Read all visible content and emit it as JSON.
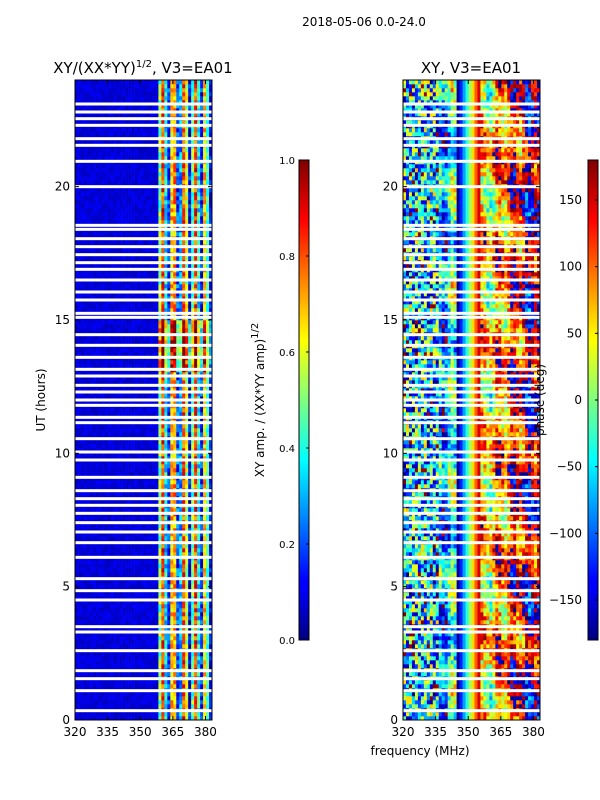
{
  "chart_data": {
    "suptitle": "2018-05-06 0.0-24.0",
    "shared_xlabel": "frequency (MHz)",
    "panels": [
      {
        "type": "heatmap",
        "title_main": "XY/(XX*YY)",
        "title_sup": "1/2",
        "title_tail": ", V3=EA01",
        "ylabel": "UT (hours)",
        "xlim": [
          320,
          383
        ],
        "ylim": [
          0,
          24
        ],
        "xticks": [
          "320",
          "335",
          "350",
          "365",
          "380"
        ],
        "xtick_values": [
          320,
          335,
          350,
          365,
          380
        ],
        "yticks": [
          "0",
          "5",
          "10",
          "15",
          "20"
        ],
        "ytick_values": [
          0,
          5,
          10,
          15,
          20
        ],
        "colormap": "jet",
        "vmin": 0,
        "vmax": 1,
        "flagged_bands_hours": [
          0.35,
          1.1,
          1.55,
          1.85,
          2.6,
          3.3,
          3.5,
          4.5,
          4.85,
          5.3,
          6.1,
          6.65,
          7.05,
          7.4,
          7.75,
          8.05,
          8.3,
          8.6,
          9.1,
          9.75,
          10.05,
          10.55,
          11.15,
          11.35,
          11.8,
          12.0,
          12.3,
          12.55,
          12.9,
          13.15,
          13.6,
          14.05,
          14.45,
          15.1,
          15.25,
          15.75,
          16.05,
          16.5,
          16.9,
          17.15,
          17.45,
          17.75,
          18.05,
          18.4,
          18.55,
          20.0,
          20.95,
          21.55,
          21.8,
          22.3,
          22.55,
          22.8,
          23.1
        ],
        "colorbar": {
          "label_main": "XY amp. / (XX*YY amp)",
          "label_sup": "1/2",
          "ticks": [
            "0.0",
            "0.2",
            "0.4",
            "0.6",
            "0.8",
            "1.0"
          ],
          "tick_values": [
            0.0,
            0.2,
            0.4,
            0.6,
            0.8,
            1.0
          ]
        }
      },
      {
        "type": "heatmap",
        "title": "XY, V3=EA01",
        "xlim": [
          320,
          383
        ],
        "ylim": [
          0,
          24
        ],
        "xticks": [
          "320",
          "335",
          "350",
          "365",
          "380"
        ],
        "xtick_values": [
          320,
          335,
          350,
          365,
          380
        ],
        "yticks": [
          "0",
          "5",
          "10",
          "15",
          "20"
        ],
        "ytick_values": [
          0,
          5,
          10,
          15,
          20
        ],
        "colormap": "jet",
        "vmin": -180,
        "vmax": 180,
        "flagged_bands_hours": [
          0.35,
          1.1,
          1.55,
          1.85,
          2.6,
          3.3,
          3.5,
          4.5,
          4.85,
          5.3,
          6.1,
          6.65,
          7.05,
          7.4,
          7.75,
          8.05,
          8.3,
          8.6,
          9.1,
          9.75,
          10.05,
          10.55,
          11.15,
          11.35,
          11.8,
          12.0,
          12.3,
          12.55,
          12.9,
          13.15,
          13.6,
          14.05,
          14.45,
          15.1,
          15.25,
          15.75,
          16.05,
          16.5,
          16.9,
          17.15,
          17.45,
          17.75,
          18.05,
          18.4,
          18.55,
          20.0,
          20.95,
          21.55,
          21.8,
          22.3,
          22.55,
          22.8,
          23.1
        ],
        "colorbar": {
          "label": "phase (deg)",
          "ticks": [
            "−150",
            "−100",
            "−50",
            "0",
            "50",
            "100",
            "150"
          ],
          "tick_values": [
            -150,
            -100,
            -50,
            0,
            50,
            100,
            150
          ]
        }
      }
    ]
  }
}
